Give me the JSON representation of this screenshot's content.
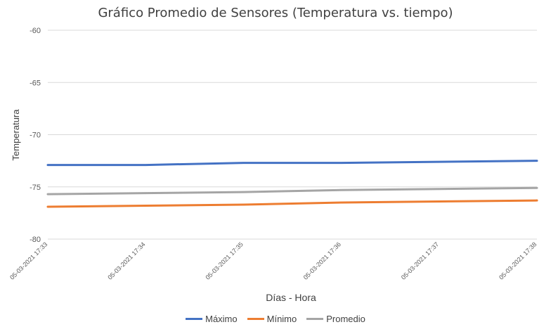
{
  "chart_data": {
    "type": "line",
    "title": "Gráfico Promedio de Sensores (Temperatura vs. tiempo)",
    "xlabel": "Días - Hora",
    "ylabel": "Temperatura",
    "categories": [
      "05-03-2021 17:33",
      "05-03-2021 17:34",
      "05-03-2021 17:35",
      "05-03-2021 17:36",
      "05-03-2021 17:37",
      "05-03-2021 17:38"
    ],
    "ylim": [
      -80,
      -60
    ],
    "yticks": [
      "-60",
      "-65",
      "-70",
      "-75",
      "-80"
    ],
    "grid": true,
    "legend_position": "bottom",
    "series": [
      {
        "name": "Máximo",
        "color": "#4472C4",
        "values": [
          -72.9,
          -72.9,
          -72.7,
          -72.7,
          -72.6,
          -72.5
        ]
      },
      {
        "name": "Mínimo",
        "color": "#ED7D31",
        "values": [
          -76.9,
          -76.8,
          -76.7,
          -76.5,
          -76.4,
          -76.3
        ]
      },
      {
        "name": "Promedio",
        "color": "#A5A5A5",
        "values": [
          -75.7,
          -75.6,
          -75.5,
          -75.3,
          -75.2,
          -75.1
        ]
      }
    ]
  }
}
